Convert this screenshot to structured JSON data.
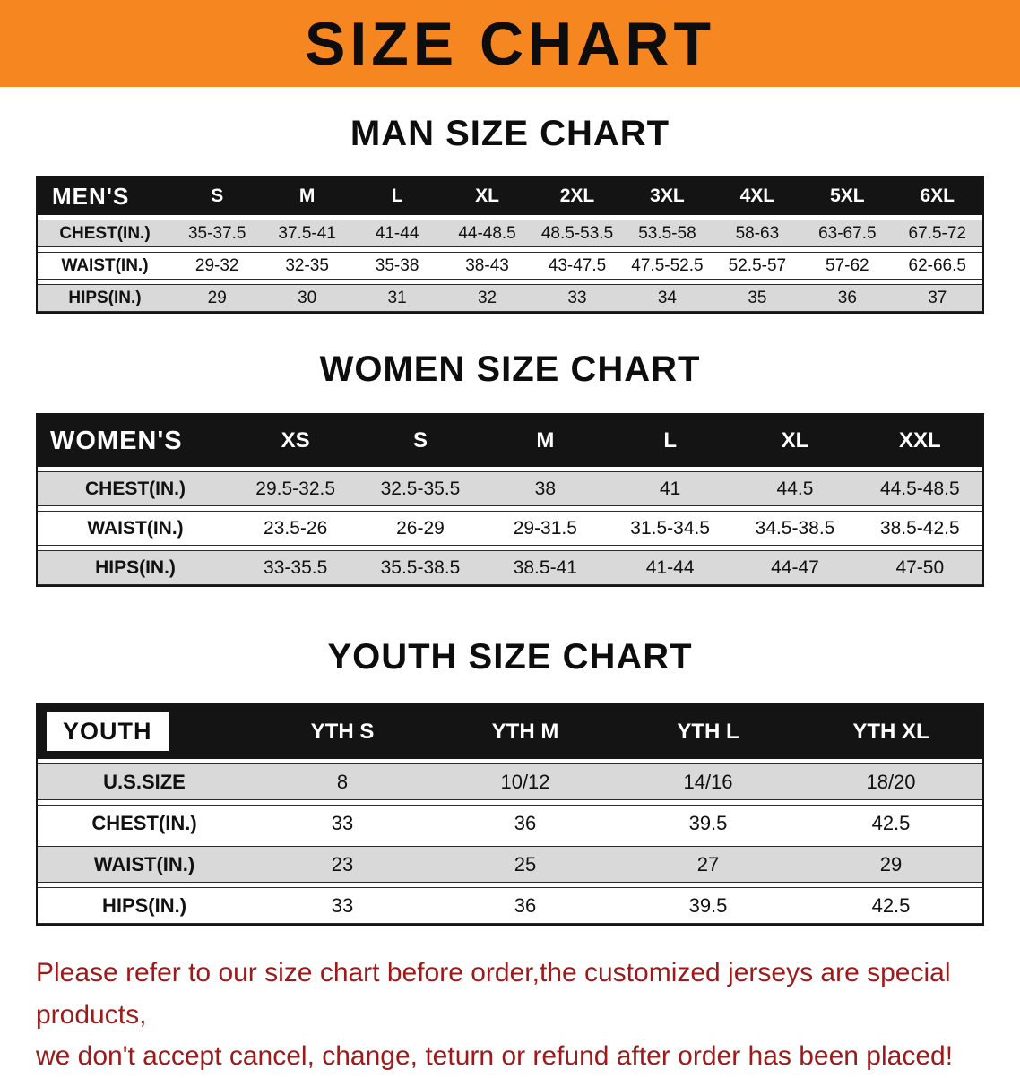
{
  "banner": {
    "title": "SIZE CHART",
    "bg_color": "#F6861F"
  },
  "colors": {
    "header_bar_bg": "#141414",
    "row_stripe": "#D9D9D9",
    "disclaimer_text": "#9C1A1A"
  },
  "sections": [
    {
      "id": "men",
      "heading": "MAN SIZE CHART",
      "table": {
        "title": "MEN'S",
        "columns": [
          "S",
          "M",
          "L",
          "XL",
          "2XL",
          "3XL",
          "4XL",
          "5XL",
          "6XL"
        ],
        "rows": [
          {
            "label": "CHEST(IN.)",
            "values": [
              "35-37.5",
              "37.5-41",
              "41-44",
              "44-48.5",
              "48.5-53.5",
              "53.5-58",
              "58-63",
              "63-67.5",
              "67.5-72"
            ]
          },
          {
            "label": "WAIST(IN.)",
            "values": [
              "29-32",
              "32-35",
              "35-38",
              "38-43",
              "43-47.5",
              "47.5-52.5",
              "52.5-57",
              "57-62",
              "62-66.5"
            ]
          },
          {
            "label": "HIPS(IN.)",
            "values": [
              "29",
              "30",
              "31",
              "32",
              "33",
              "34",
              "35",
              "36",
              "37"
            ]
          }
        ]
      }
    },
    {
      "id": "women",
      "heading": "WOMEN SIZE CHART",
      "table": {
        "title": "WOMEN'S",
        "columns": [
          "XS",
          "S",
          "M",
          "L",
          "XL",
          "XXL"
        ],
        "rows": [
          {
            "label": "CHEST(IN.)",
            "values": [
              "29.5-32.5",
              "32.5-35.5",
              "38",
              "41",
              "44.5",
              "44.5-48.5"
            ]
          },
          {
            "label": "WAIST(IN.)",
            "values": [
              "23.5-26",
              "26-29",
              "29-31.5",
              "31.5-34.5",
              "34.5-38.5",
              "38.5-42.5"
            ]
          },
          {
            "label": "HIPS(IN.)",
            "values": [
              "33-35.5",
              "35.5-38.5",
              "38.5-41",
              "41-44",
              "44-47",
              "47-50"
            ]
          }
        ]
      }
    },
    {
      "id": "youth",
      "heading": "YOUTH SIZE CHART",
      "table": {
        "title": "YOUTH",
        "columns": [
          "YTH S",
          "YTH M",
          "YTH L",
          "YTH XL"
        ],
        "rows": [
          {
            "label": "U.S.SIZE",
            "values": [
              "8",
              "10/12",
              "14/16",
              "18/20"
            ]
          },
          {
            "label": "CHEST(IN.)",
            "values": [
              "33",
              "36",
              "39.5",
              "42.5"
            ]
          },
          {
            "label": "WAIST(IN.)",
            "values": [
              "23",
              "25",
              "27",
              "29"
            ]
          },
          {
            "label": "HIPS(IN.)",
            "values": [
              "33",
              "36",
              "39.5",
              "42.5"
            ]
          }
        ]
      }
    }
  ],
  "disclaimer": {
    "lines": [
      "Please refer to our size chart before order,the customized jerseys are special products,",
      "we don't accept cancel, change, teturn or refund after order has been placed!"
    ]
  }
}
